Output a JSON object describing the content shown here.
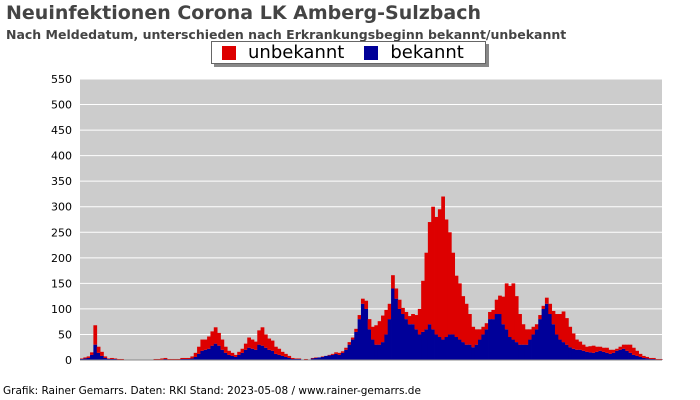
{
  "title": "Neuinfektionen Corona LK Amberg-Sulzbach",
  "subtitle": "Nach Meldedatum, unterschieden nach Erkrankungsbeginn bekannt/unbekannt",
  "credit": "Grafik: Rainer Gemarrs. Daten: RKI Stand: 2023-05-08 / www.rainer-gemarrs.de",
  "colors": {
    "unbekannt": "#dd0000",
    "bekannt": "#000099",
    "plot_bg": "#cccccc",
    "grid": "#ffffff"
  },
  "chart_data": {
    "type": "bar",
    "stacked": true,
    "grid": true,
    "legend_position": "top-center",
    "ylim": [
      0,
      550
    ],
    "yticks": [
      0,
      50,
      100,
      150,
      200,
      250,
      300,
      350,
      400,
      450,
      500,
      550
    ],
    "x_axis_note": "weekly bins, dates on the x-axis are overprinted and illegible",
    "series": [
      {
        "name": "unbekannt",
        "values": [
          1,
          2,
          3,
          5,
          38,
          12,
          8,
          3,
          1,
          2,
          1,
          1,
          1,
          0,
          0,
          0,
          0,
          0,
          0,
          0,
          0,
          0,
          1,
          1,
          2,
          2,
          1,
          1,
          1,
          1,
          2,
          2,
          2,
          4,
          8,
          14,
          22,
          20,
          24,
          28,
          32,
          25,
          20,
          12,
          8,
          6,
          4,
          6,
          8,
          12,
          20,
          18,
          16,
          28,
          36,
          26,
          22,
          20,
          14,
          12,
          8,
          6,
          4,
          2,
          1,
          1,
          0,
          1,
          0,
          1,
          1,
          0,
          1,
          0,
          1,
          2,
          3,
          4,
          3,
          4,
          5,
          4,
          6,
          8,
          10,
          16,
          20,
          25,
          38,
          46,
          52,
          48,
          30,
          26,
          20,
          18,
          12,
          14,
          16,
          20,
          28,
          50,
          100,
          150,
          200,
          240,
          230,
          250,
          280,
          230,
          200,
          160,
          120,
          110,
          90,
          80,
          60,
          40,
          30,
          20,
          15,
          12,
          14,
          18,
          28,
          36,
          54,
          90,
          100,
          110,
          90,
          60,
          40,
          30,
          20,
          15,
          10,
          8,
          6,
          12,
          20,
          26,
          40,
          50,
          60,
          52,
          40,
          30,
          20,
          16,
          12,
          10,
          12,
          14,
          10,
          8,
          8,
          10,
          8,
          6,
          4,
          6,
          8,
          12,
          16,
          14,
          10,
          6,
          4,
          3,
          2,
          2,
          1,
          1
        ],
        "color": "#dd0000"
      },
      {
        "name": "bekannt",
        "values": [
          2,
          3,
          4,
          10,
          30,
          14,
          8,
          4,
          2,
          2,
          2,
          1,
          1,
          0,
          0,
          0,
          0,
          0,
          0,
          0,
          0,
          0,
          1,
          1,
          1,
          2,
          1,
          1,
          1,
          1,
          2,
          2,
          2,
          3,
          6,
          12,
          18,
          20,
          22,
          28,
          32,
          28,
          20,
          14,
          10,
          8,
          6,
          10,
          14,
          20,
          24,
          22,
          20,
          30,
          28,
          24,
          20,
          18,
          12,
          10,
          8,
          6,
          4,
          2,
          2,
          2,
          1,
          1,
          1,
          3,
          4,
          5,
          6,
          8,
          9,
          10,
          12,
          10,
          14,
          20,
          30,
          40,
          55,
          80,
          110,
          100,
          60,
          40,
          30,
          30,
          35,
          50,
          80,
          140,
          120,
          100,
          90,
          80,
          70,
          70,
          60,
          50,
          55,
          60,
          70,
          60,
          50,
          45,
          40,
          45,
          50,
          50,
          45,
          40,
          35,
          30,
          30,
          25,
          30,
          40,
          50,
          60,
          80,
          80,
          90,
          90,
          70,
          60,
          45,
          40,
          35,
          30,
          30,
          30,
          40,
          50,
          60,
          80,
          100,
          110,
          90,
          70,
          50,
          40,
          35,
          30,
          25,
          22,
          20,
          20,
          18,
          16,
          15,
          14,
          16,
          18,
          16,
          14,
          12,
          14,
          18,
          20,
          22,
          18,
          14,
          10,
          8,
          6,
          4,
          3,
          2,
          2,
          1,
          1,
          1,
          1
        ],
        "color": "#000099"
      }
    ]
  }
}
